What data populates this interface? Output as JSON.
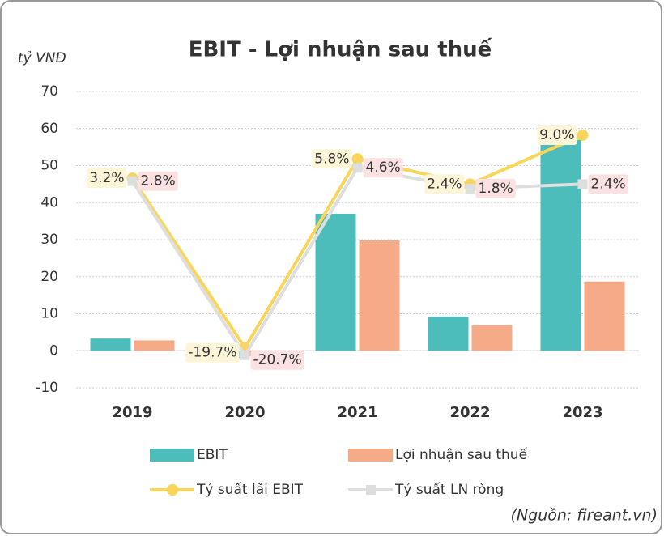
{
  "chart_data": {
    "type": "bar_line",
    "title": "EBIT - Lợi nhuận sau thuế",
    "y_label": "tỷ VNĐ",
    "source": "(Nguồn: fireant.vn)",
    "categories": [
      "2019",
      "2020",
      "2021",
      "2022",
      "2023"
    ],
    "ylim": [
      -10,
      70
    ],
    "yticks": [
      -10,
      0,
      10,
      20,
      30,
      40,
      50,
      60,
      70
    ],
    "y2lim": [
      -25.1,
      14.9
    ],
    "grid": true,
    "series": [
      {
        "name": "EBIT",
        "kind": "bar",
        "color": "#4dbdbb",
        "values": [
          3.3,
          -2,
          37,
          9.2,
          57
        ]
      },
      {
        "name": "Lợi nhuận sau thuế",
        "kind": "bar",
        "color": "#f6ab88",
        "values": [
          2.8,
          -1.5,
          29.8,
          6.9,
          18.7
        ]
      },
      {
        "name": "Tỷ suất lãi EBIT",
        "kind": "line",
        "axis": "y2",
        "color": "#f9d55a",
        "values": [
          3.2,
          -19.7,
          5.8,
          2.4,
          9.0
        ],
        "value_labels": [
          "3.2%",
          "-19.7%",
          "5.8%",
          "2.4%",
          "9.0%"
        ]
      },
      {
        "name": "Tỷ suất LN ròng",
        "kind": "line",
        "axis": "y2",
        "color": "#dedede",
        "values": [
          2.8,
          -20.7,
          4.6,
          1.8,
          2.4
        ],
        "value_labels": [
          "2.8%",
          "-20.7%",
          "4.6%",
          "1.8%",
          "2.4%"
        ]
      }
    ]
  }
}
